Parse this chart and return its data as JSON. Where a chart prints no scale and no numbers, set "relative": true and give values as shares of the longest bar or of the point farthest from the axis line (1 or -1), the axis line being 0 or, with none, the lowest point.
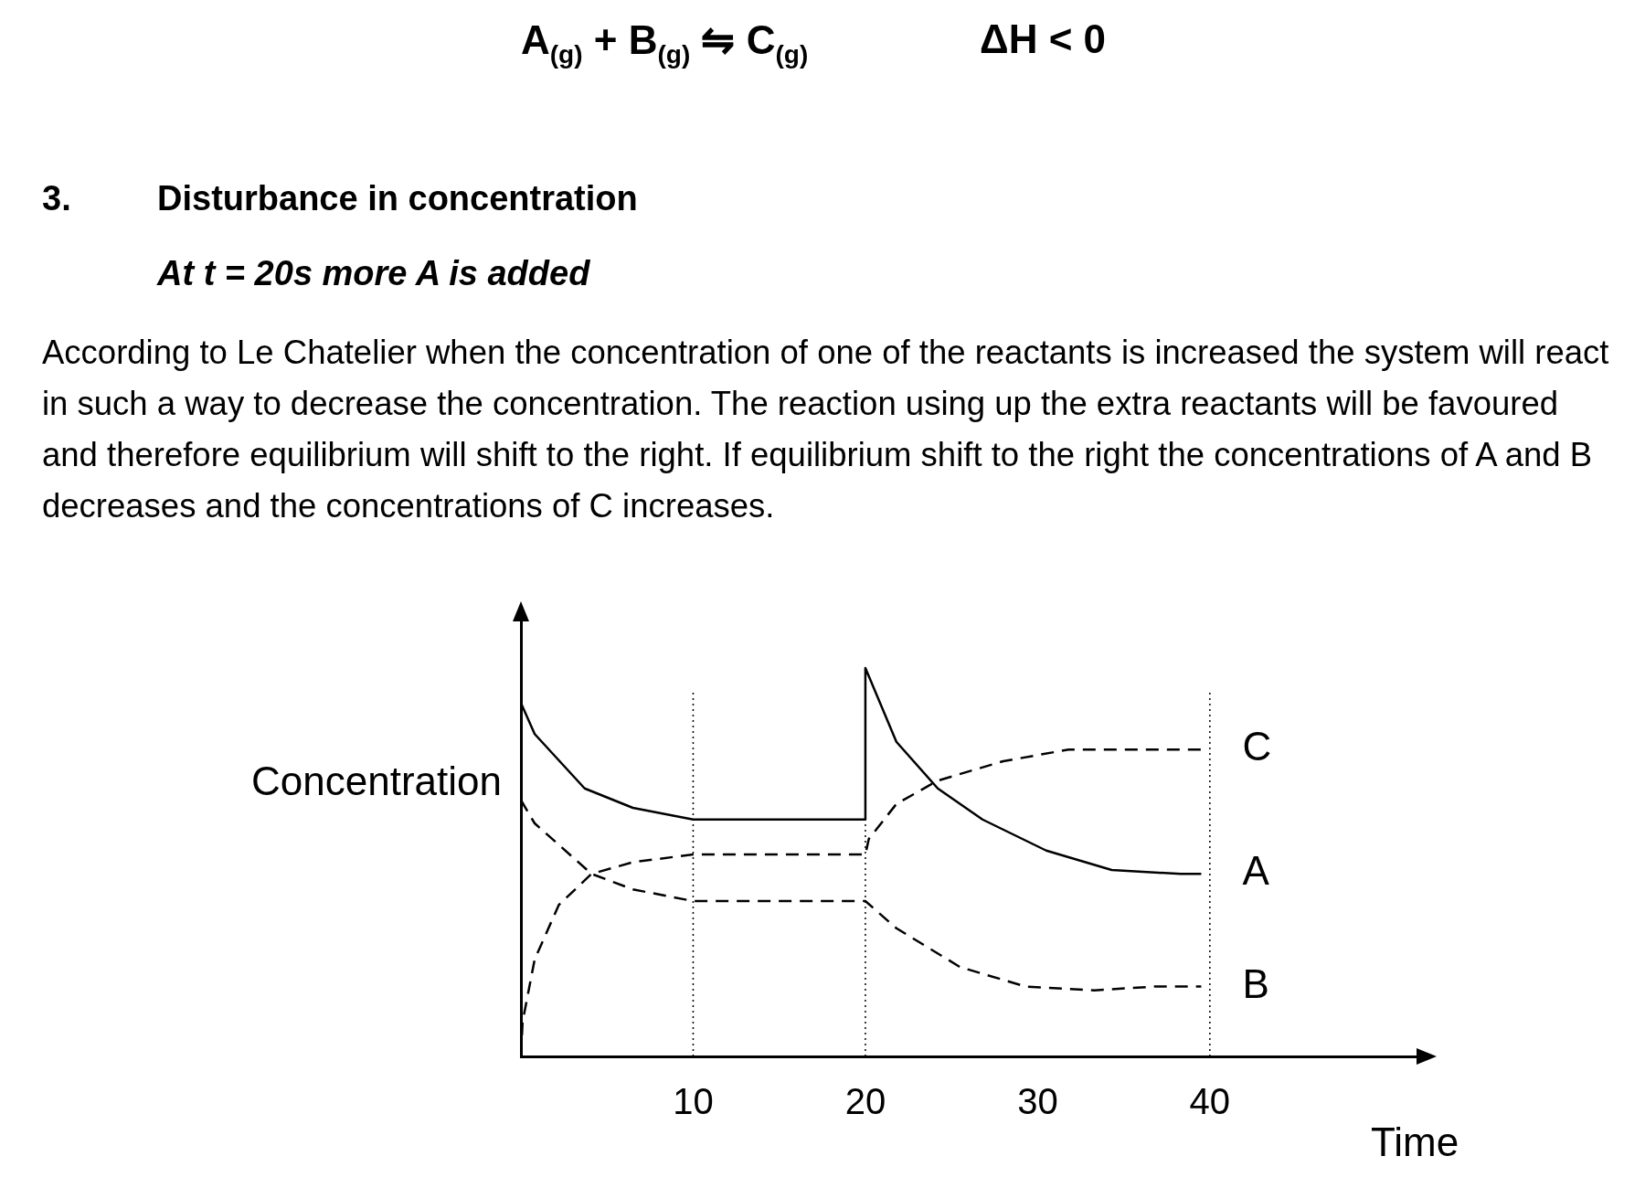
{
  "chart_data": {
    "type": "line",
    "title": "A$_{(g)}$ + B$_{(g)}$ ⇋ C$_{(g)}$",
    "annotations": [
      "ΔH < 0",
      "3.",
      "Disturbance in concentration",
      "At t = 20s more A is added",
      "According to Le Chatelier when the concentration of one of the reactants is increased the system will react in such a way to decrease the concentration. The reaction using up the extra reactants will be favoured and therefore equilibrium will shift to the right. If equilibrium shift to the right the concentrations of A and B decreases and the concentrations of C increases."
    ],
    "xlabel": "Time",
    "ylabel": "Concentration",
    "relative": true,
    "xlim": [
      0,
      52
    ],
    "xticks": [
      10,
      20,
      30,
      40
    ],
    "tick_labels": "x",
    "grid": false,
    "legend": false,
    "marker": "none",
    "series": [
      {
        "name": "A",
        "color": "#000000",
        "line_style": "solid",
        "x": [
          0,
          0.8,
          3.7,
          6.5,
          10,
          20,
          20,
          21.8,
          24.2,
          26.8,
          30.5,
          34.3,
          38.3,
          39.5
        ],
        "values": [
          0.91,
          0.83,
          0.69,
          0.64,
          0.61,
          0.61,
          1,
          0.81,
          0.69,
          0.61,
          0.53,
          0.48,
          0.47,
          0.47
        ]
      },
      {
        "name": "B",
        "color": "#000000",
        "line_style": "dashed",
        "x": [
          0,
          0.8,
          4.1,
          6.5,
          10,
          20,
          21.8,
          25.5,
          29.3,
          33.3,
          36.8,
          39.5
        ],
        "values": [
          0.66,
          0.6,
          0.47,
          0.43,
          0.4,
          0.4,
          0.33,
          0.23,
          0.18,
          0.17,
          0.18,
          0.18
        ]
      },
      {
        "name": "C",
        "color": "#000000",
        "line_style": "dashed",
        "x": [
          0,
          0.1,
          0.8,
          2.2,
          4.1,
          6.5,
          10,
          20,
          20.2,
          21.8,
          24.2,
          28,
          31.8,
          39.5
        ],
        "values": [
          0,
          0.09,
          0.25,
          0.39,
          0.47,
          0.5,
          0.52,
          0.52,
          0.56,
          0.65,
          0.71,
          0.76,
          0.79,
          0.79
        ]
      }
    ],
    "ref_lines": [
      {
        "axis": "x",
        "value": 10,
        "line_style": "dotted"
      },
      {
        "axis": "x",
        "value": 20,
        "line_style": "dotted"
      },
      {
        "axis": "x",
        "value": 40,
        "line_style": "dotted"
      }
    ]
  }
}
